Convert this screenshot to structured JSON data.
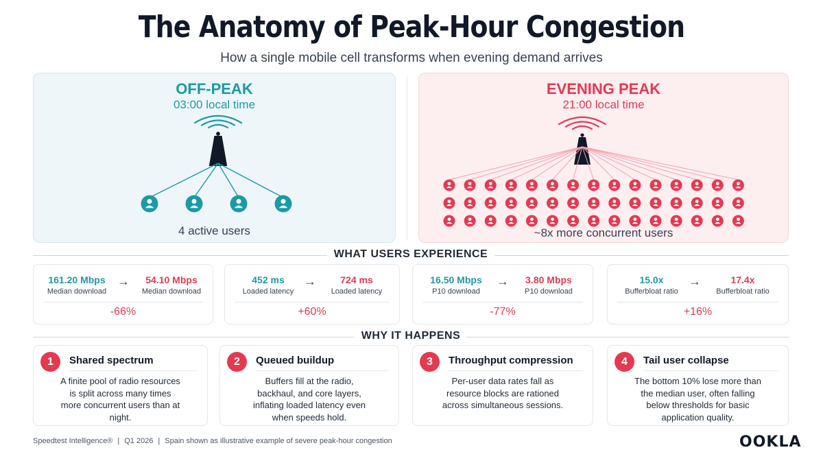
{
  "header": {
    "title": "The Anatomy of Peak-Hour Congestion",
    "subtitle": "How a single mobile cell transforms when evening demand arrives"
  },
  "panels": {
    "off_peak": {
      "title": "OFF-PEAK",
      "time": "03:00 local time",
      "caption": "4 active users",
      "user_count": 4,
      "color": "#1b9aa7"
    },
    "evening_peak": {
      "title": "EVENING PEAK",
      "time": "21:00 local time",
      "caption": "~8x more concurrent users",
      "user_rows": 3,
      "user_cols": 15,
      "color": "#e53950"
    }
  },
  "experience": {
    "heading": "WHAT USERS EXPERIENCE",
    "metrics": [
      {
        "before_value": "161.20 Mbps",
        "before_label": "Median download",
        "after_value": "54.10 Mbps",
        "after_label": "Median download",
        "delta": "-66%"
      },
      {
        "before_value": "452 ms",
        "before_label": "Loaded latency",
        "after_value": "724 ms",
        "after_label": "Loaded latency",
        "delta": "+60%"
      },
      {
        "before_value": "16.50 Mbps",
        "before_label": "P10 download",
        "after_value": "3.80 Mbps",
        "after_label": "P10 download",
        "delta": "-77%"
      },
      {
        "before_value": "15.0x",
        "before_label": "Bufferbloat ratio",
        "after_value": "17.4x",
        "after_label": "Bufferbloat ratio",
        "delta": "+16%"
      }
    ],
    "arrow": "→"
  },
  "reasons": {
    "heading": "WHY IT HAPPENS",
    "items": [
      {
        "number": "1",
        "title": "Shared spectrum",
        "body": "A finite pool of radio resources is split across many times more concurrent users than at night."
      },
      {
        "number": "2",
        "title": "Queued buildup",
        "body": "Buffers fill at the radio, backhaul, and core layers, inflating loaded latency even when speeds hold."
      },
      {
        "number": "3",
        "title": "Throughput compression",
        "body": "Per-user data rates fall as resource blocks are rationed across simultaneous sessions."
      },
      {
        "number": "4",
        "title": "Tail user collapse",
        "body": "The bottom 10% lose more than the median user, often falling below thresholds for basic application quality."
      }
    ]
  },
  "footer": {
    "source": "Speedtest Intelligence®",
    "period": "Q1 2026",
    "note": "Spain shown as illustrative example of severe peak-hour congestion",
    "separator": "|",
    "logo": "OOKLA"
  },
  "colors": {
    "off_peak_accent": "#1b9aa7",
    "peak_accent": "#e53950",
    "off_peak_bg": "#eef6fa",
    "peak_bg": "#fdeef0"
  }
}
